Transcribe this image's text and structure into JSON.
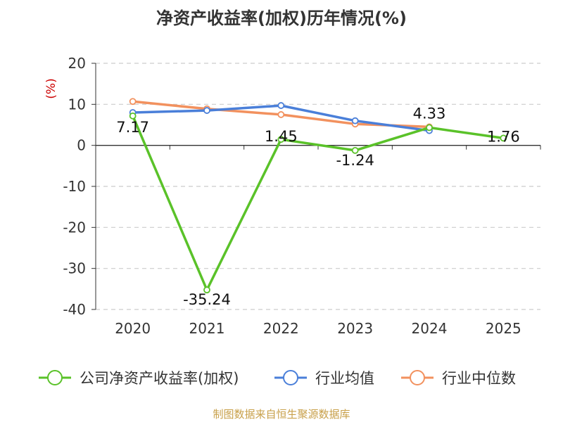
{
  "title": "净资产收益率(加权)历年情况(%)",
  "source": "制图数据来自恒生聚源数据库",
  "colors": {
    "company": "#5ac229",
    "industry_avg": "#4a7fd9",
    "industry_median": "#f2915e",
    "unit_label": "#cc0000",
    "source": "#c8a04a"
  },
  "chart_data": {
    "type": "line",
    "title": "净资产收益率(加权)历年情况(%)",
    "ylabel": "(%)",
    "xlabel": "",
    "categories": [
      "2020",
      "2021",
      "2022",
      "2023",
      "2024",
      "2025"
    ],
    "ylim": [
      -40,
      20
    ],
    "yticks": [
      20,
      10,
      0,
      -10,
      -20,
      -30,
      -40
    ],
    "grid": true,
    "legend_position": "bottom",
    "series": [
      {
        "name": "公司净资产收益率(加权)",
        "values": [
          7.17,
          -35.24,
          1.45,
          -1.24,
          4.33,
          1.76
        ],
        "labels": [
          "7.17",
          "-35.24",
          "1.45",
          "-1.24",
          "4.33",
          "1.76"
        ],
        "color": "#5ac229"
      },
      {
        "name": "行业均值",
        "values": [
          8.0,
          8.5,
          9.7,
          6.0,
          3.6,
          null
        ],
        "color": "#4a7fd9"
      },
      {
        "name": "行业中位数",
        "values": [
          10.7,
          8.9,
          7.5,
          5.2,
          4.5,
          null
        ],
        "color": "#f2915e"
      }
    ]
  }
}
